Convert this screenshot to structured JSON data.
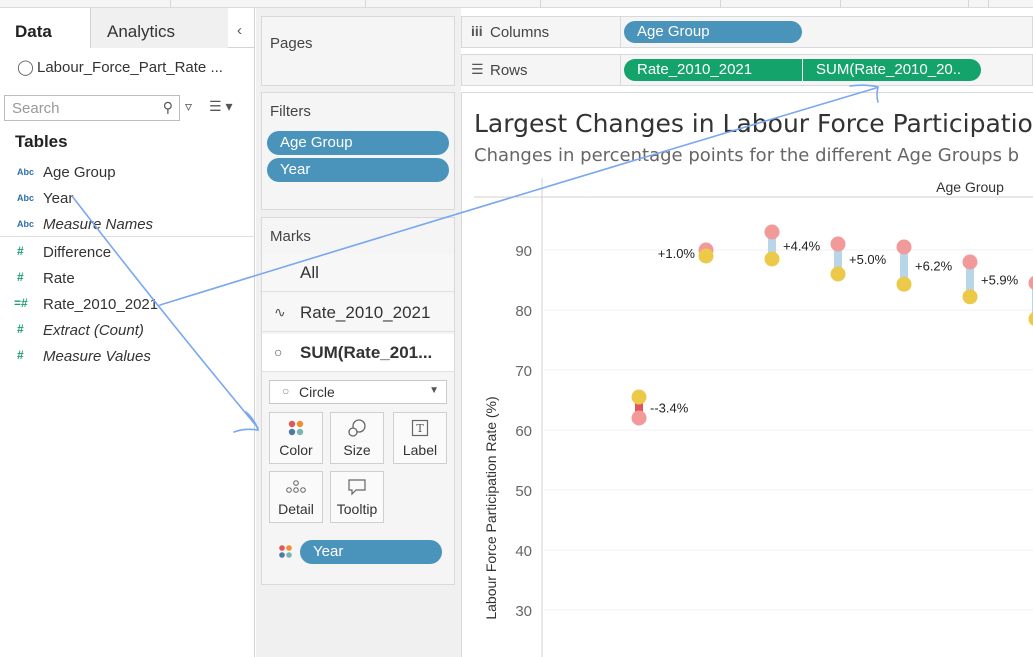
{
  "data_pane": {
    "tabs": {
      "data": "Data",
      "analytics": "Analytics"
    },
    "source": "Labour_Force_Part_Rate ...",
    "search_placeholder": "Search",
    "tables_heading": "Tables",
    "dimensions": [
      {
        "type": "Abc",
        "name": "Age Group"
      },
      {
        "type": "Abc",
        "name": "Year"
      },
      {
        "type": "Abc",
        "name": "Measure Names"
      }
    ],
    "measures": [
      {
        "type": "#",
        "name": "Difference"
      },
      {
        "type": "#",
        "name": "Rate"
      },
      {
        "type": "=#",
        "name": "Rate_2010_2021"
      },
      {
        "type": "#",
        "name": "Extract (Count)"
      },
      {
        "type": "#",
        "name": "Measure Values"
      }
    ]
  },
  "cards": {
    "pages": "Pages",
    "filters": {
      "title": "Filters",
      "items": [
        "Age Group",
        "Year"
      ]
    },
    "marks": {
      "title": "Marks",
      "rows": [
        "All",
        "Rate_2010_2021",
        "SUM(Rate_201..."
      ],
      "mark_type": "Circle",
      "buttons": [
        "Color",
        "Size",
        "Label",
        "Detail",
        "Tooltip"
      ],
      "color_pill": "Year"
    }
  },
  "shelves": {
    "columns_label": "Columns",
    "columns_pills": [
      "Age Group"
    ],
    "rows_label": "Rows",
    "rows_pills": [
      "Rate_2010_2021",
      "SUM(Rate_2010_20.."
    ]
  },
  "view": {
    "title": "Largest Changes in Labour Force Participation R",
    "subtitle": "Changes in percentage points for the different Age Groups b"
  },
  "chart_data": {
    "type": "scatter",
    "column_header": "Age Group",
    "ylabel": "Labour Force Participation Rate (%)",
    "ylim": [
      25,
      97
    ],
    "yticks": [
      30,
      40,
      50,
      60,
      70,
      80,
      90
    ],
    "colors": {
      "rate_2010": "#f2999a",
      "rate_2021": "#edc949",
      "increase_bar": "#b9d6e8",
      "decrease_bar": "#e15759"
    },
    "series": [
      {
        "name": "Pink dots",
        "values": [
          62.0,
          90.0,
          93.0,
          91.0,
          90.5,
          88.0,
          84.5
        ]
      },
      {
        "name": "Yellow dots",
        "values": [
          65.5,
          89.0,
          88.5,
          86.0,
          84.3,
          82.2,
          78.5
        ]
      }
    ],
    "labels": [
      "--3.4%",
      "+1.0%",
      "+4.4%",
      "+5.0%",
      "+6.2%",
      "+5.9%",
      ""
    ]
  },
  "annotation": {
    "arrow_color": "#7aa8f0"
  }
}
